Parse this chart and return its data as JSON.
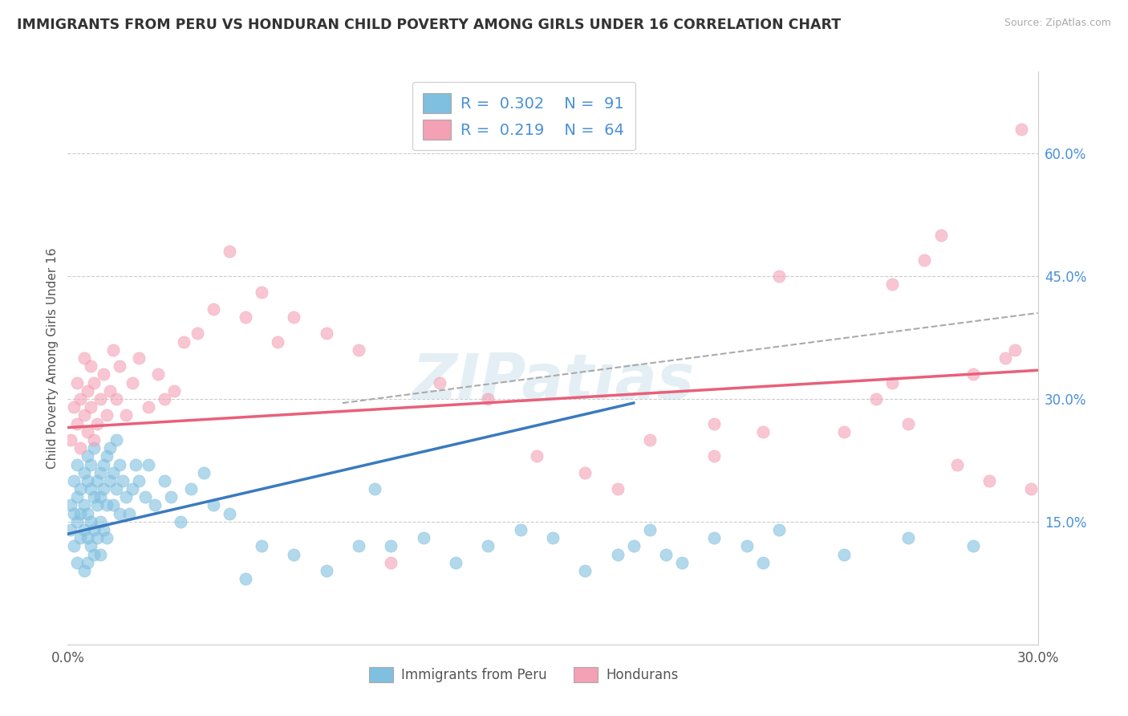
{
  "title": "IMMIGRANTS FROM PERU VS HONDURAN CHILD POVERTY AMONG GIRLS UNDER 16 CORRELATION CHART",
  "source": "Source: ZipAtlas.com",
  "ylabel": "Child Poverty Among Girls Under 16",
  "xlim": [
    0.0,
    0.3
  ],
  "ylim": [
    0.0,
    0.7
  ],
  "x_ticks": [
    0.0,
    0.05,
    0.1,
    0.15,
    0.2,
    0.25,
    0.3
  ],
  "x_tick_labels": [
    "0.0%",
    "",
    "",
    "",
    "",
    "",
    "30.0%"
  ],
  "y_ticks_right": [
    0.15,
    0.3,
    0.45,
    0.6
  ],
  "y_tick_labels_right": [
    "15.0%",
    "30.0%",
    "45.0%",
    "60.0%"
  ],
  "color_blue": "#7fbfdf",
  "color_pink": "#f4a0b5",
  "color_blue_line": "#3a7abf",
  "color_pink_line": "#e8607a",
  "color_dashed": "#aaaaaa",
  "blue_line": {
    "x0": 0.0,
    "y0": 0.135,
    "x1": 0.175,
    "y1": 0.295
  },
  "pink_line": {
    "x0": 0.0,
    "y0": 0.265,
    "x1": 0.3,
    "y1": 0.335
  },
  "dashed_line": {
    "x0": 0.085,
    "y0": 0.295,
    "x1": 0.3,
    "y1": 0.405
  },
  "blue_scatter_x": [
    0.001,
    0.001,
    0.002,
    0.002,
    0.002,
    0.003,
    0.003,
    0.003,
    0.003,
    0.004,
    0.004,
    0.004,
    0.005,
    0.005,
    0.005,
    0.005,
    0.006,
    0.006,
    0.006,
    0.006,
    0.006,
    0.007,
    0.007,
    0.007,
    0.007,
    0.008,
    0.008,
    0.008,
    0.008,
    0.009,
    0.009,
    0.009,
    0.01,
    0.01,
    0.01,
    0.01,
    0.011,
    0.011,
    0.011,
    0.012,
    0.012,
    0.012,
    0.013,
    0.013,
    0.014,
    0.014,
    0.015,
    0.015,
    0.016,
    0.016,
    0.017,
    0.018,
    0.019,
    0.02,
    0.021,
    0.022,
    0.024,
    0.025,
    0.027,
    0.03,
    0.032,
    0.035,
    0.038,
    0.042,
    0.045,
    0.05,
    0.055,
    0.06,
    0.07,
    0.08,
    0.09,
    0.095,
    0.1,
    0.11,
    0.12,
    0.13,
    0.14,
    0.15,
    0.16,
    0.17,
    0.175,
    0.18,
    0.185,
    0.19,
    0.2,
    0.21,
    0.215,
    0.22,
    0.24,
    0.26,
    0.28
  ],
  "blue_scatter_y": [
    0.17,
    0.14,
    0.2,
    0.16,
    0.12,
    0.18,
    0.15,
    0.22,
    0.1,
    0.16,
    0.19,
    0.13,
    0.17,
    0.21,
    0.14,
    0.09,
    0.2,
    0.16,
    0.23,
    0.13,
    0.1,
    0.19,
    0.15,
    0.22,
    0.12,
    0.18,
    0.24,
    0.14,
    0.11,
    0.2,
    0.17,
    0.13,
    0.21,
    0.18,
    0.15,
    0.11,
    0.22,
    0.19,
    0.14,
    0.23,
    0.17,
    0.13,
    0.24,
    0.2,
    0.21,
    0.17,
    0.25,
    0.19,
    0.22,
    0.16,
    0.2,
    0.18,
    0.16,
    0.19,
    0.22,
    0.2,
    0.18,
    0.22,
    0.17,
    0.2,
    0.18,
    0.15,
    0.19,
    0.21,
    0.17,
    0.16,
    0.08,
    0.12,
    0.11,
    0.09,
    0.12,
    0.19,
    0.12,
    0.13,
    0.1,
    0.12,
    0.14,
    0.13,
    0.09,
    0.11,
    0.12,
    0.14,
    0.11,
    0.1,
    0.13,
    0.12,
    0.1,
    0.14,
    0.11,
    0.13,
    0.12
  ],
  "pink_scatter_x": [
    0.001,
    0.002,
    0.003,
    0.003,
    0.004,
    0.004,
    0.005,
    0.005,
    0.006,
    0.006,
    0.007,
    0.007,
    0.008,
    0.008,
    0.009,
    0.01,
    0.011,
    0.012,
    0.013,
    0.014,
    0.015,
    0.016,
    0.018,
    0.02,
    0.022,
    0.025,
    0.028,
    0.03,
    0.033,
    0.036,
    0.04,
    0.045,
    0.05,
    0.055,
    0.06,
    0.065,
    0.07,
    0.08,
    0.09,
    0.1,
    0.115,
    0.13,
    0.145,
    0.16,
    0.18,
    0.2,
    0.22,
    0.24,
    0.25,
    0.255,
    0.26,
    0.265,
    0.27,
    0.275,
    0.28,
    0.285,
    0.29,
    0.293,
    0.295,
    0.298,
    0.255,
    0.215,
    0.2,
    0.17
  ],
  "pink_scatter_y": [
    0.25,
    0.29,
    0.27,
    0.32,
    0.24,
    0.3,
    0.28,
    0.35,
    0.26,
    0.31,
    0.29,
    0.34,
    0.25,
    0.32,
    0.27,
    0.3,
    0.33,
    0.28,
    0.31,
    0.36,
    0.3,
    0.34,
    0.28,
    0.32,
    0.35,
    0.29,
    0.33,
    0.3,
    0.31,
    0.37,
    0.38,
    0.41,
    0.48,
    0.4,
    0.43,
    0.37,
    0.4,
    0.38,
    0.36,
    0.1,
    0.32,
    0.3,
    0.23,
    0.21,
    0.25,
    0.27,
    0.45,
    0.26,
    0.3,
    0.32,
    0.27,
    0.47,
    0.5,
    0.22,
    0.33,
    0.2,
    0.35,
    0.36,
    0.63,
    0.19,
    0.44,
    0.26,
    0.23,
    0.19
  ]
}
